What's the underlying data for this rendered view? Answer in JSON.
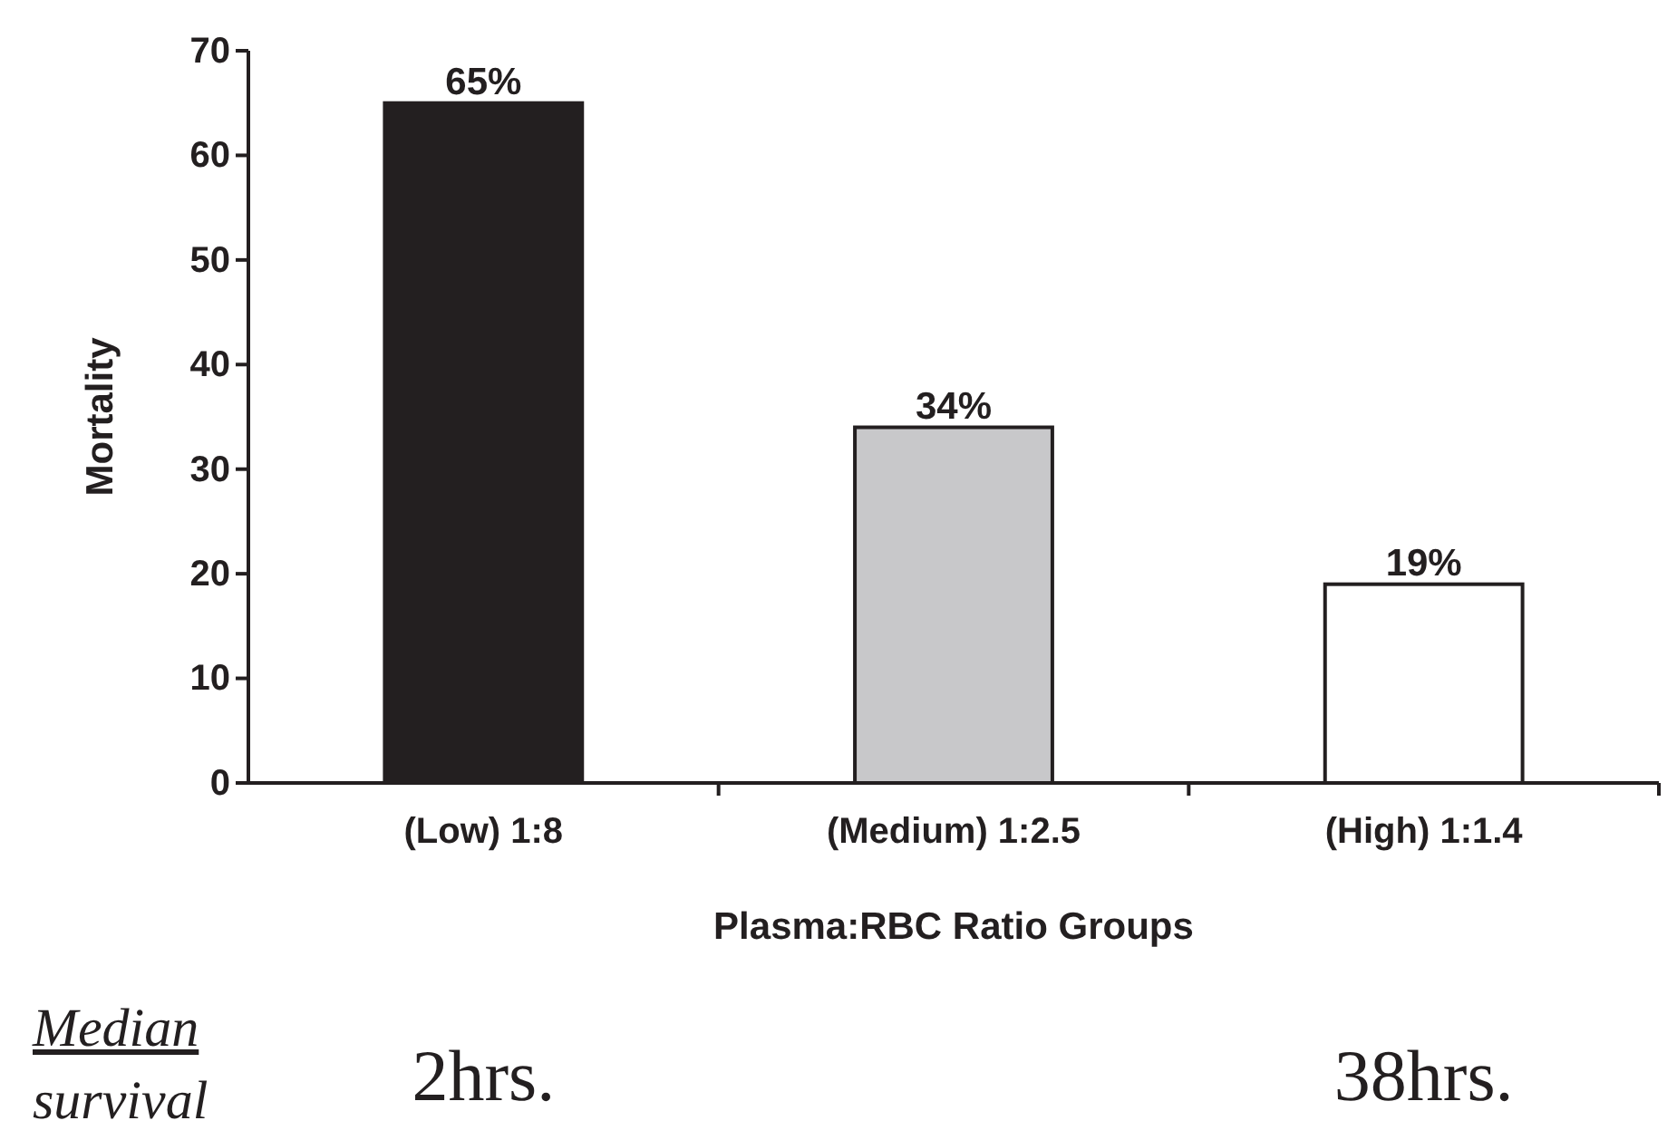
{
  "chart_data": {
    "type": "bar",
    "xlabel": "Plasma:RBC Ratio Groups",
    "ylabel": "Mortality",
    "categories": [
      "(Low) 1:8",
      "(Medium) 1:2.5",
      "(High) 1:1.4"
    ],
    "values": [
      65,
      34,
      19
    ],
    "value_labels": [
      "65%",
      "34%",
      "19%"
    ],
    "colors": [
      "#231f20",
      "#c8c8ca",
      "#ffffff"
    ],
    "ylim": [
      0,
      70
    ],
    "yticks": [
      0,
      10,
      20,
      30,
      40,
      50,
      60,
      70
    ],
    "grid": false,
    "annotations": [
      "Median survival",
      "2hrs.",
      "38hrs."
    ]
  }
}
